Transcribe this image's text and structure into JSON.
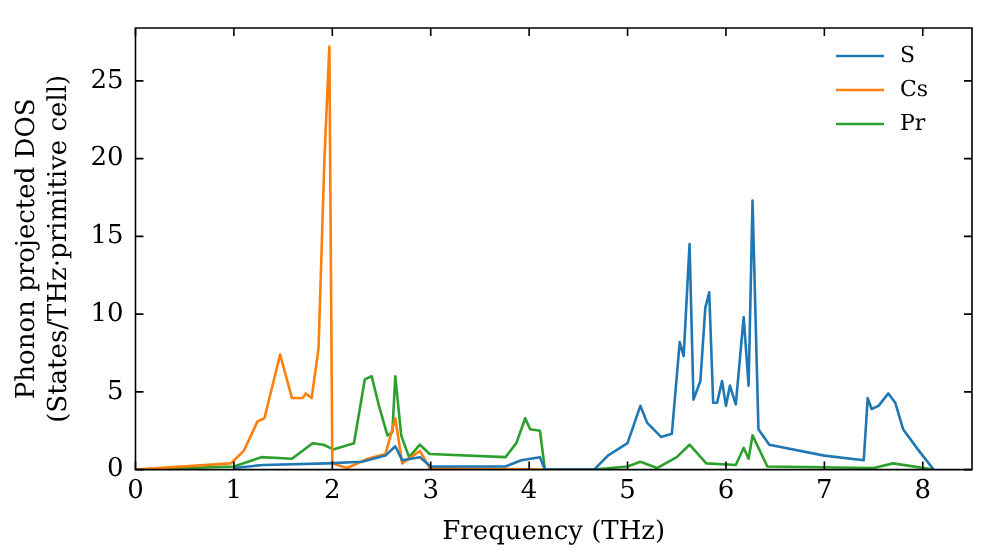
{
  "chart_data": {
    "type": "line",
    "xlabel": "Frequency (THz)",
    "ylabel": "Phonon projected DOS\n(States/THz·primitive cell)",
    "xlim": [
      0,
      8.5
    ],
    "ylim": [
      0,
      28.4
    ],
    "xticks": [
      0,
      1,
      2,
      3,
      4,
      5,
      6,
      7,
      8
    ],
    "yticks": [
      0,
      5,
      10,
      15,
      20,
      25
    ],
    "grid": false,
    "legend": "top right",
    "marker": "none",
    "line_style": "solid",
    "series": [
      {
        "name": "S",
        "color": "#1f77b4",
        "x": [
          1.0,
          1.3,
          1.95,
          2.3,
          2.54,
          2.64,
          2.71,
          2.89,
          3.0,
          3.76,
          3.92,
          4.11,
          4.16,
          4.66,
          4.8,
          5.0,
          5.13,
          5.2,
          5.34,
          5.45,
          5.53,
          5.57,
          5.63,
          5.67,
          5.74,
          5.79,
          5.83,
          5.87,
          5.91,
          5.96,
          6.0,
          6.04,
          6.1,
          6.18,
          6.23,
          6.27,
          6.33,
          6.44,
          7.0,
          7.4,
          7.44,
          7.48,
          7.55,
          7.65,
          7.72,
          7.8,
          7.95,
          8.11
        ],
        "values": [
          0.1,
          0.3,
          0.4,
          0.5,
          0.9,
          1.5,
          0.6,
          0.8,
          0.2,
          0.2,
          0.6,
          0.8,
          0,
          0,
          0.9,
          1.7,
          4.1,
          3.0,
          2.1,
          2.3,
          8.2,
          7.3,
          14.5,
          4.5,
          5.7,
          10.4,
          11.4,
          4.3,
          4.3,
          5.7,
          4.1,
          5.4,
          4.2,
          9.8,
          5.4,
          17.3,
          2.6,
          1.6,
          0.9,
          0.6,
          4.6,
          3.9,
          4.1,
          4.9,
          4.3,
          2.6,
          1.3,
          0
        ]
      },
      {
        "name": "Cs",
        "color": "#ff7f0e",
        "x": [
          0,
          0.97,
          1.1,
          1.24,
          1.31,
          1.47,
          1.59,
          1.7,
          1.73,
          1.79,
          1.86,
          1.92,
          1.97,
          2.0,
          2.15,
          2.36,
          2.54,
          2.64,
          2.71,
          2.89,
          2.99,
          4.16
        ],
        "values": [
          0,
          0.4,
          1.2,
          3.1,
          3.3,
          7.4,
          4.6,
          4.6,
          4.9,
          4.6,
          7.8,
          20,
          27.2,
          0.4,
          0.1,
          0.7,
          1.0,
          3.3,
          0.4,
          1.2,
          0.1,
          0
        ]
      },
      {
        "name": "Pr",
        "color": "#2ca02c",
        "x": [
          0,
          1.0,
          1.28,
          1.59,
          1.8,
          1.91,
          2.01,
          2.22,
          2.33,
          2.4,
          2.47,
          2.56,
          2.61,
          2.64,
          2.7,
          2.78,
          2.89,
          2.99,
          3.76,
          3.87,
          3.96,
          4.01,
          4.11,
          4.16,
          4.66,
          5.0,
          5.13,
          5.3,
          5.5,
          5.63,
          5.8,
          6.1,
          6.18,
          6.23,
          6.27,
          6.42,
          7.5,
          7.7,
          8.11
        ],
        "values": [
          0,
          0.2,
          0.8,
          0.7,
          1.7,
          1.6,
          1.3,
          1.7,
          5.8,
          6.0,
          4.2,
          2.2,
          2.4,
          6.0,
          2.2,
          0.8,
          1.6,
          1.0,
          0.8,
          1.7,
          3.3,
          2.6,
          2.5,
          0,
          0,
          0.2,
          0.5,
          0.1,
          0.8,
          1.6,
          0.4,
          0.3,
          1.4,
          0.7,
          2.2,
          0.2,
          0.1,
          0.4,
          0
        ]
      }
    ]
  }
}
